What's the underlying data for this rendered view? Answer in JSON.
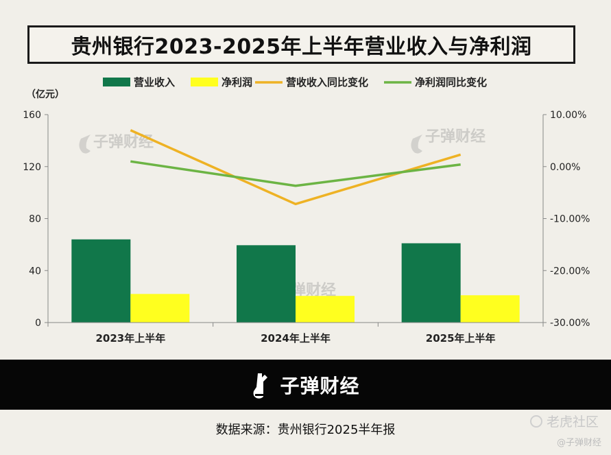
{
  "title": "贵州银行2023-2025年上半年营业收入与净利润",
  "left_axis_unit": "（亿元）",
  "source_text": "数据来源：贵州银行2025半年报",
  "brand": "子弹财经",
  "corner_watermark": "老虎社区",
  "corner_handle": "@子弹财经",
  "colors": {
    "revenue": "#11774a",
    "net_profit": "#ffff1f",
    "revenue_yoy": "#eeb224",
    "profit_yoy": "#6cb444"
  },
  "chart_data": {
    "type": "bar",
    "categories": [
      "2023年上半年",
      "2024年上半年",
      "2025年上半年"
    ],
    "series": [
      {
        "name": "营业收入",
        "type": "bar",
        "axis": "left",
        "values": [
          64,
          59.5,
          61
        ]
      },
      {
        "name": "净利润",
        "type": "bar",
        "axis": "left",
        "values": [
          22,
          20.5,
          21
        ]
      },
      {
        "name": "营收收入同比变化",
        "type": "line",
        "axis": "right",
        "values": [
          7.0,
          -7.2,
          2.3
        ]
      },
      {
        "name": "净利润同比变化",
        "type": "line",
        "axis": "right",
        "values": [
          1.0,
          -3.7,
          0.4
        ]
      }
    ],
    "left_axis": {
      "min": 0,
      "max": 160,
      "ticks": [
        0,
        40,
        80,
        120,
        160
      ],
      "tick_labels": [
        "0",
        "40",
        "80",
        "120",
        "160"
      ]
    },
    "right_axis": {
      "min": -30,
      "max": 10,
      "ticks": [
        10,
        0,
        -10,
        -20,
        -30
      ],
      "tick_labels": [
        "10.00%",
        "0.00%",
        "-10.00%",
        "-20.00%",
        "-30.00%"
      ]
    },
    "legend_position": "top",
    "grid": false
  }
}
